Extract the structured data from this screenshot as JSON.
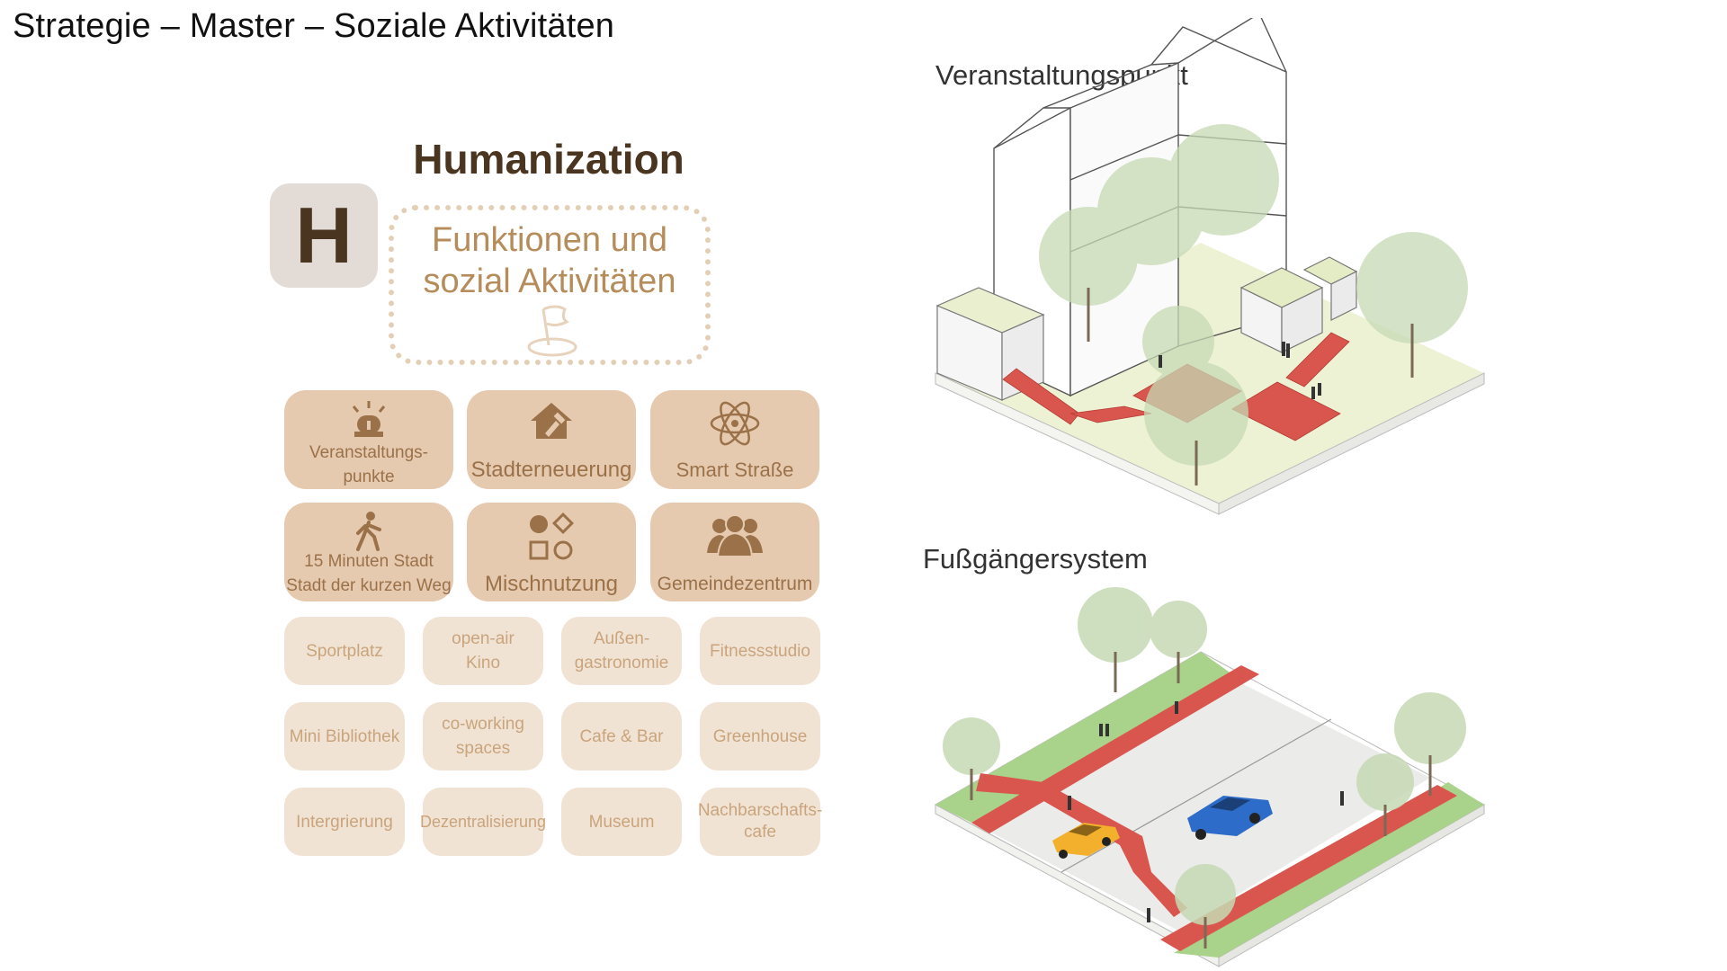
{
  "page": {
    "title": "Strategie – Master – Soziale Aktivitäten"
  },
  "left": {
    "heading": "Humanization",
    "badge_letter": "H",
    "function_box": {
      "line1": "Funktionen und",
      "line2": "sozial Aktivitäten",
      "icon": "flag-icon"
    },
    "primary_tiles": [
      {
        "label": "Veranstaltungs-\npunkte",
        "icon": "alarm-light-icon"
      },
      {
        "label": "Stadterneuerung",
        "icon": "house-hammer-icon"
      },
      {
        "label": "Smart Straße",
        "icon": "atom-icon"
      },
      {
        "label": "15 Minuten Stadt\nStadt der kurzen Weg",
        "icon": "walking-person-icon"
      },
      {
        "label": "Mischnutzung",
        "icon": "shapes-icon"
      },
      {
        "label": "Gemeindezentrum",
        "icon": "people-group-icon"
      }
    ],
    "secondary_tiles": [
      "Sportplatz",
      "open-air\nKino",
      "Außen-\ngastronomie",
      "Fitnessstudio",
      "Mini Bibliothek",
      "co-working\nspaces",
      "Cafe & Bar",
      "Greenhouse",
      "Intergrierung",
      "Dezentralisierung",
      "Museum",
      "Nachbarschafts-\ncafe"
    ]
  },
  "right": {
    "diagram1_label": "Veranstaltungspunkt",
    "diagram2_label": "Fußgängersystem"
  },
  "colors": {
    "heading": "#4a3520",
    "primary_tile": "#e6cab0",
    "secondary_tile": "#f1e3d4",
    "accent_text": "#b58c5a",
    "path_red": "#d9564e",
    "lawn": "#eef2d4",
    "grass_green": "#a9d28a"
  }
}
